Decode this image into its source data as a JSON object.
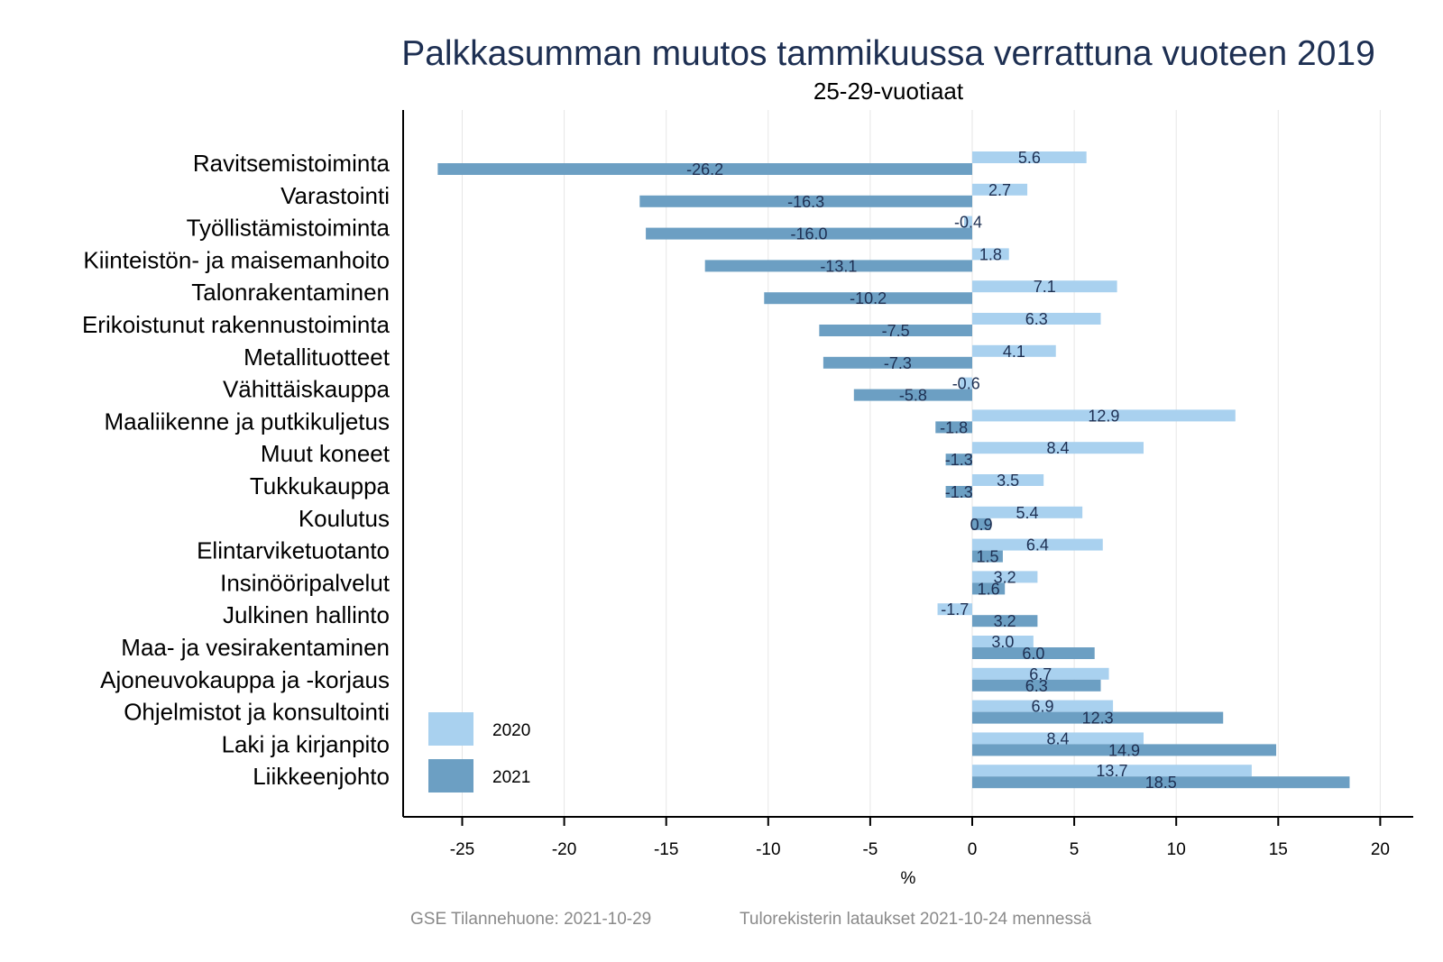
{
  "chart_data": {
    "type": "bar",
    "orientation": "horizontal",
    "title": "Palkkasumman muutos tammikuussa verrattuna vuoteen 2019",
    "subtitle": "25-29-vuotiaat",
    "xlabel": "%",
    "ylabel": "",
    "xlim": [
      -28,
      21.5
    ],
    "xticks": [
      -25,
      -20,
      -15,
      -10,
      -5,
      0,
      5,
      10,
      15,
      20
    ],
    "xtick_labels": [
      "-25",
      "-20",
      "-15",
      "-10",
      "-5",
      "0",
      "5",
      "10",
      "15",
      "20"
    ],
    "grid": "vertical",
    "legend_position": "bottom-left",
    "categories": [
      "Ravitsemistoiminta",
      "Varastointi",
      "Työllistämistoiminta",
      "Kiinteistön- ja maisemanhoito",
      "Talonrakentaminen",
      "Erikoistunut rakennustoiminta",
      "Metallituotteet",
      "Vähittäiskauppa",
      "Maaliikenne ja putkikuljetus",
      "Muut koneet",
      "Tukkukauppa",
      "Koulutus",
      "Elintarviketuotanto",
      "Insinööripalvelut",
      "Julkinen hallinto",
      "Maa- ja vesirakentaminen",
      "Ajoneuvokauppa ja -korjaus",
      "Ohjelmistot ja konsultointi",
      "Laki ja kirjanpito",
      "Liikkeenjohto"
    ],
    "series": [
      {
        "name": "2020",
        "color": "#a9d1ef",
        "values": [
          5.6,
          2.7,
          -0.4,
          1.8,
          7.1,
          6.3,
          4.1,
          -0.6,
          12.9,
          8.4,
          3.5,
          5.4,
          6.4,
          3.2,
          -1.7,
          3.0,
          6.7,
          6.9,
          8.4,
          13.7
        ],
        "labels": [
          "5.6",
          "2.7",
          "-0.4",
          "1.8",
          "7.1",
          "6.3",
          "4.1",
          "-0.6",
          "12.9",
          "8.4",
          "3.5",
          "5.4",
          "6.4",
          "3.2",
          "-1.7",
          "3.0",
          "6.7",
          "6.9",
          "8.4",
          "13.7"
        ]
      },
      {
        "name": "2021",
        "color": "#6c9fc3",
        "values": [
          -26.2,
          -16.3,
          -16.0,
          -13.1,
          -10.2,
          -7.5,
          -7.3,
          -5.8,
          -1.8,
          -1.3,
          -1.3,
          0.9,
          1.5,
          1.6,
          3.2,
          6.0,
          6.3,
          12.3,
          14.9,
          18.5
        ],
        "labels": [
          "-26.2",
          "-16.3",
          "-16.0",
          "-13.1",
          "-10.2",
          "-7.5",
          "-7.3",
          "-5.8",
          "-1.8",
          "-1.3",
          "-1.3",
          "0.9",
          "1.5",
          "1.6",
          "3.2",
          "6.0",
          "6.3",
          "12.3",
          "14.9",
          "18.5"
        ]
      }
    ],
    "colors": {
      "title": "#1d2f52",
      "data_label": "#1d2f52",
      "grid": "#e6e6e6",
      "axis": "#000000",
      "footer": "#8a8a8a"
    }
  },
  "footer": {
    "left": "GSE Tilannehuone: 2021-10-29",
    "right": "Tulorekisterin lataukset 2021-10-24 mennessä"
  }
}
